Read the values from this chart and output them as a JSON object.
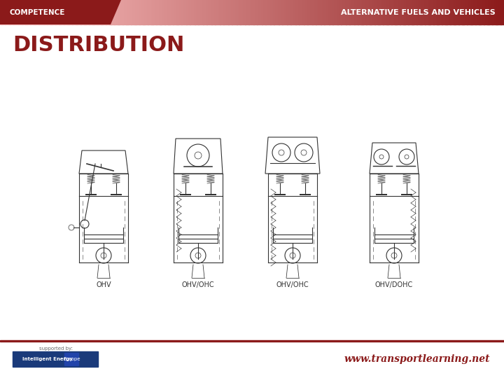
{
  "title_bar_text": "ALTERNATIVE FUELS AND VEHICLES",
  "competence_text": "COMPETENCE",
  "slide_title": "DISTRIBUTION",
  "website": "www.transportlearning.net",
  "supported_by": "supported by:",
  "intelligent_energy": "Intelligent Energy",
  "europe": "Europe",
  "engine_labels": [
    "OHV",
    "OHV/OHC",
    "OHV/OHC",
    "OHV/DOHC"
  ],
  "bg_color": "#ffffff",
  "header_bar_color": "#8B1A1A",
  "header_text_color": "#ffffff",
  "competence_bg": "#8B1A1A",
  "slide_title_color": "#8B1A1A",
  "footer_line_color": "#8B1A1A",
  "website_color": "#8B1A1A"
}
